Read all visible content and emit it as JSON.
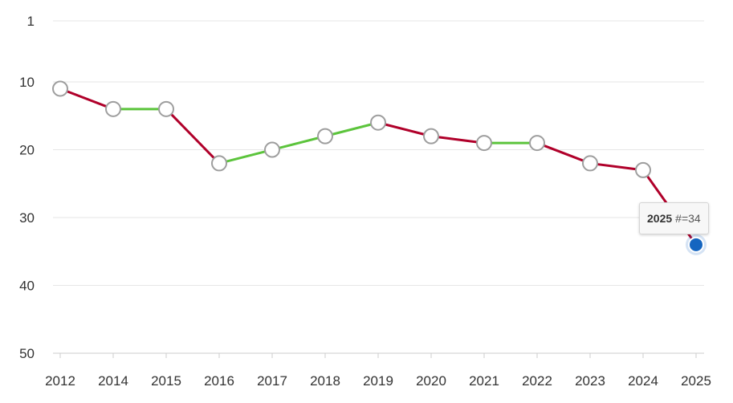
{
  "chart_data": {
    "type": "line",
    "title": "",
    "xlabel": "",
    "ylabel": "",
    "y_inverted": true,
    "ylim": [
      1,
      50
    ],
    "yticks": [
      1,
      10,
      20,
      30,
      40,
      50
    ],
    "categories": [
      "2012",
      "2014",
      "2015",
      "2016",
      "2017",
      "2018",
      "2019",
      "2020",
      "2021",
      "2022",
      "2023",
      "2024",
      "2025"
    ],
    "series": [
      {
        "values": [
          11,
          14,
          14,
          22,
          20,
          18,
          16,
          18,
          19,
          19,
          22,
          23,
          34
        ]
      }
    ],
    "segment_colors": {
      "improved": "#5cc43c",
      "declined": "#b0002a"
    },
    "grid": true,
    "tooltip": {
      "year": "2025",
      "text": "#=34"
    },
    "highlight_color": "#1565c0"
  }
}
